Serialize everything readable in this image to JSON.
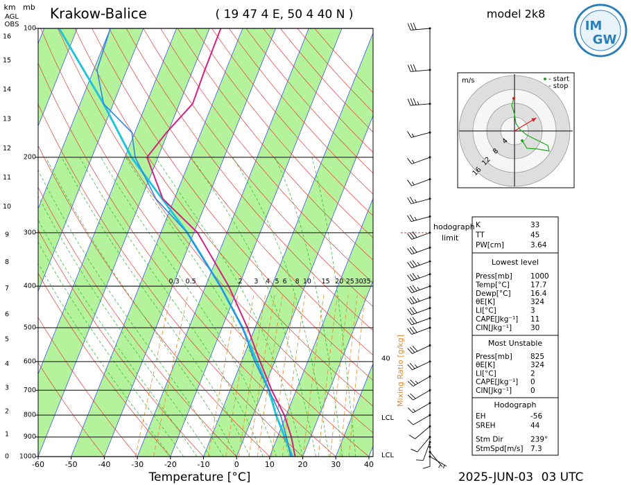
{
  "header": {
    "station": "Krakow-Balice",
    "location": "( 19 47 4 E, 50 4 40 N )",
    "model": "model 2k8",
    "date": "2025-JUN-03",
    "time": "03 UTC",
    "logo": [
      "IM",
      "GW"
    ]
  },
  "chart_data": {
    "type": "skewt",
    "xlabel": "Temperature [°C]",
    "xlim": [
      -60,
      40
    ],
    "xticks": [
      -60,
      -50,
      -40,
      -30,
      -20,
      -10,
      0,
      10,
      20,
      30,
      40
    ],
    "ylim": [
      1000,
      100
    ],
    "yticks": [
      1000,
      900,
      800,
      700,
      600,
      500,
      400,
      300,
      200,
      100
    ],
    "pressure_label": "mb",
    "height_label": "km",
    "height_ref": [
      "AGL",
      "OBS"
    ],
    "height_ticks": [
      0,
      1,
      2,
      3,
      4,
      5,
      6,
      7,
      8,
      9,
      10,
      11,
      12,
      13,
      14,
      15,
      16
    ],
    "series": [
      {
        "color": "#22c4dc",
        "width": 3,
        "pressure": [
          1000,
          800,
          700,
          500,
          400,
          300,
          200,
          150,
          100
        ],
        "values": [
          16.9,
          6.9,
          1.8,
          -13.8,
          -25.5,
          -42,
          -68,
          -82.9,
          -105.5
        ]
      },
      {
        "color": "#2f86e6",
        "width": 1.6,
        "pressure": [
          1000,
          900,
          800,
          700,
          600,
          500,
          400,
          300,
          250,
          200,
          175,
          150,
          125,
          100
        ],
        "values": [
          16.4,
          12.7,
          8.3,
          1.8,
          -6,
          -13.8,
          -25.5,
          -42,
          -55.6,
          -66.9,
          -70.9,
          -82.9,
          -89,
          -90
        ]
      },
      {
        "color": "#d42080",
        "width": 2,
        "pressure": [
          1000,
          900,
          800,
          700,
          600,
          500,
          400,
          300,
          250,
          200,
          175,
          150,
          125,
          100
        ],
        "values": [
          17.7,
          14.2,
          9.4,
          2.6,
          -4.4,
          -12.3,
          -23,
          -38.9,
          -53.5,
          -63.3,
          -60.4,
          -56,
          -56.4,
          -56.6
        ]
      }
    ],
    "mixing_ratio": {
      "label": "Mixing Ratio [g/kg]",
      "values": [
        0.3,
        0.5,
        2,
        3,
        4,
        5,
        6,
        8,
        10,
        15,
        20,
        25,
        30,
        35
      ],
      "label_pressure": 390
    },
    "annotations": [
      {
        "text": 40,
        "pressure": 586
      },
      {
        "text": "LCL",
        "pressure": 805
      },
      {
        "text": "LCL",
        "pressure": 985
      }
    ],
    "hodograph_limit": {
      "text": [
        "hodograph",
        "limit"
      ],
      "pressure": 300
    },
    "winds": {
      "pressure": [
        100,
        125,
        150,
        175,
        200,
        225,
        250,
        275,
        300,
        325,
        350,
        375,
        400,
        425,
        450,
        475,
        500,
        550,
        600,
        650,
        700,
        750,
        800,
        850,
        900,
        925,
        950,
        975,
        1000
      ],
      "speed": [
        30,
        30,
        35,
        15,
        15,
        15,
        25,
        25,
        30,
        30,
        35,
        35,
        35,
        35,
        30,
        30,
        30,
        30,
        25,
        25,
        20,
        15,
        10,
        10,
        10,
        10,
        10,
        5,
        5
      ],
      "direction": [
        265,
        265,
        265,
        255,
        250,
        250,
        255,
        255,
        250,
        250,
        250,
        250,
        250,
        250,
        250,
        250,
        250,
        245,
        245,
        240,
        240,
        240,
        240,
        230,
        220,
        200,
        180,
        140,
        120
      ]
    }
  },
  "hodograph": {
    "unit": "m/s",
    "legend": [
      "- start",
      "- stop"
    ],
    "rings": [
      4,
      8,
      12,
      16
    ],
    "u": [
      2.2,
      3.6,
      6.6,
      10,
      9.6,
      5.6,
      3.6,
      1.6,
      0.4,
      0,
      -0.8,
      -0.2
    ],
    "v": [
      -2.8,
      -5,
      -5.2,
      -5.8,
      -4.2,
      -2.2,
      -1.2,
      0.4,
      2.2,
      4.8,
      7.4,
      9.4
    ]
  },
  "indices": {
    "sections": [
      {
        "rows": [
          [
            "K",
            33
          ],
          [
            "TT",
            45
          ],
          [
            "PW[cm]",
            3.64
          ]
        ]
      },
      {
        "title": "Lowest level",
        "rows": [
          [
            "Press[mb]",
            1000
          ],
          [
            "Temp[°C]",
            17.7
          ],
          [
            "Dewp[°C]",
            16.4
          ],
          [
            "θE[K]",
            324
          ],
          [
            "LI[°C]",
            3
          ],
          [
            "CAPE[Jkg⁻¹]",
            11
          ],
          [
            "CIN[Jkg⁻¹]",
            30
          ]
        ]
      },
      {
        "title": "Most Unstable",
        "rows": [
          [
            "Press[mb]",
            825
          ],
          [
            "θE[K]",
            324
          ],
          [
            "LI[°C]",
            2
          ],
          [
            "CAPE[Jkg⁻¹]",
            0
          ],
          [
            "CIN[Jkg⁻¹]",
            0
          ]
        ]
      },
      {
        "title": "Hodograph",
        "rows": [
          [
            "EH",
            -56
          ],
          [
            "SREH",
            44
          ],
          [
            "Stm Dir",
            "239°"
          ],
          [
            "StmSpd[m/s]",
            7.3
          ]
        ]
      }
    ]
  }
}
